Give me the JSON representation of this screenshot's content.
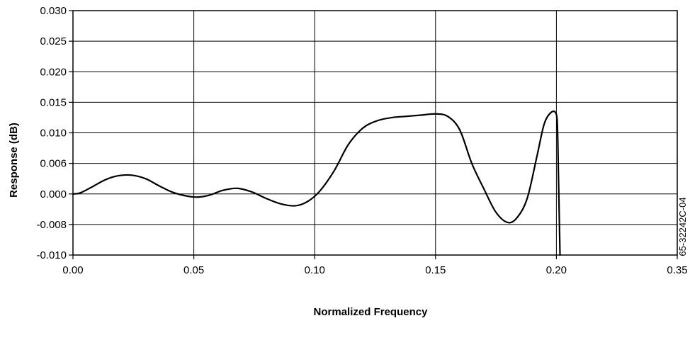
{
  "chart_data": {
    "type": "line",
    "xlabel": "Normalized Frequency",
    "ylabel": "Response (dB)",
    "figure_code": "65-32242C-04",
    "grid": true,
    "x_tick_labels": [
      "0.00",
      "0.05",
      "0.10",
      "0.15",
      "0.20",
      "0.35"
    ],
    "y_tick_labels": [
      "0.030",
      "0.025",
      "0.020",
      "0.015",
      "0.010",
      "0.006",
      "0.000",
      "-0.008",
      "-0.010"
    ],
    "colors": {
      "line": "#000000",
      "grid": "#000000",
      "background": "#ffffff"
    },
    "series": [
      {
        "x": [
          0.0,
          0.003,
          0.008,
          0.013,
          0.018,
          0.024,
          0.03,
          0.036,
          0.042,
          0.05,
          0.056,
          0.062,
          0.068,
          0.074,
          0.08,
          0.086,
          0.092,
          0.097,
          0.102,
          0.108,
          0.114,
          0.12,
          0.126,
          0.132,
          0.138,
          0.144,
          0.15,
          0.155,
          0.16,
          0.165,
          0.17,
          0.175,
          0.18,
          0.184,
          0.188,
          0.192,
          0.195,
          0.198,
          0.2,
          0.2015,
          0.2025,
          0.2035,
          0.2045
        ],
        "y": [
          0.0,
          0.0002,
          0.0014,
          0.0027,
          0.0035,
          0.0037,
          0.003,
          0.0015,
          0.0002,
          -0.0008,
          -0.0004,
          0.0007,
          0.0011,
          0.0004,
          -0.0012,
          -0.0026,
          -0.0031,
          -0.002,
          0.0005,
          0.0045,
          0.0085,
          0.0108,
          0.012,
          0.0125,
          0.0127,
          0.0129,
          0.0131,
          0.0127,
          0.0105,
          0.006,
          0.001,
          -0.0048,
          -0.0075,
          -0.006,
          -0.001,
          0.007,
          0.0115,
          0.0134,
          0.013,
          0.01,
          0.004,
          -0.005,
          -0.01
        ]
      }
    ]
  }
}
